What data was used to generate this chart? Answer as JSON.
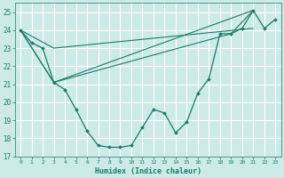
{
  "title": "",
  "xlabel": "Humidex (Indice chaleur)",
  "ylabel": "",
  "background_color": "#cceae7",
  "grid_color": "#ffffff",
  "line_color": "#1a7a6a",
  "xlim": [
    -0.5,
    23.5
  ],
  "ylim": [
    17,
    25.5
  ],
  "yticks": [
    17,
    18,
    19,
    20,
    21,
    22,
    23,
    24,
    25
  ],
  "xticks": [
    0,
    1,
    2,
    3,
    4,
    5,
    6,
    7,
    8,
    9,
    10,
    11,
    12,
    13,
    14,
    15,
    16,
    17,
    18,
    19,
    20,
    21,
    22,
    23
  ],
  "curve1_x": [
    0,
    1,
    2,
    3,
    4,
    5,
    6,
    7,
    8,
    9,
    10,
    11,
    12,
    13,
    14,
    15,
    16,
    17,
    18,
    19,
    20,
    21,
    22,
    23
  ],
  "curve1_y": [
    24.0,
    23.3,
    23.0,
    21.1,
    20.7,
    19.6,
    18.4,
    17.6,
    17.5,
    17.5,
    17.6,
    18.6,
    19.6,
    19.4,
    18.3,
    18.9,
    20.5,
    21.3,
    23.8,
    23.8,
    24.1,
    25.1,
    24.1,
    24.6
  ],
  "line2_x": [
    0,
    3,
    21
  ],
  "line2_y": [
    24.0,
    23.0,
    24.1
  ],
  "line3_x": [
    0,
    3,
    21
  ],
  "line3_y": [
    24.0,
    21.1,
    25.1
  ],
  "line4_x": [
    0,
    3,
    19,
    21
  ],
  "line4_y": [
    24.0,
    21.1,
    23.8,
    25.1
  ]
}
